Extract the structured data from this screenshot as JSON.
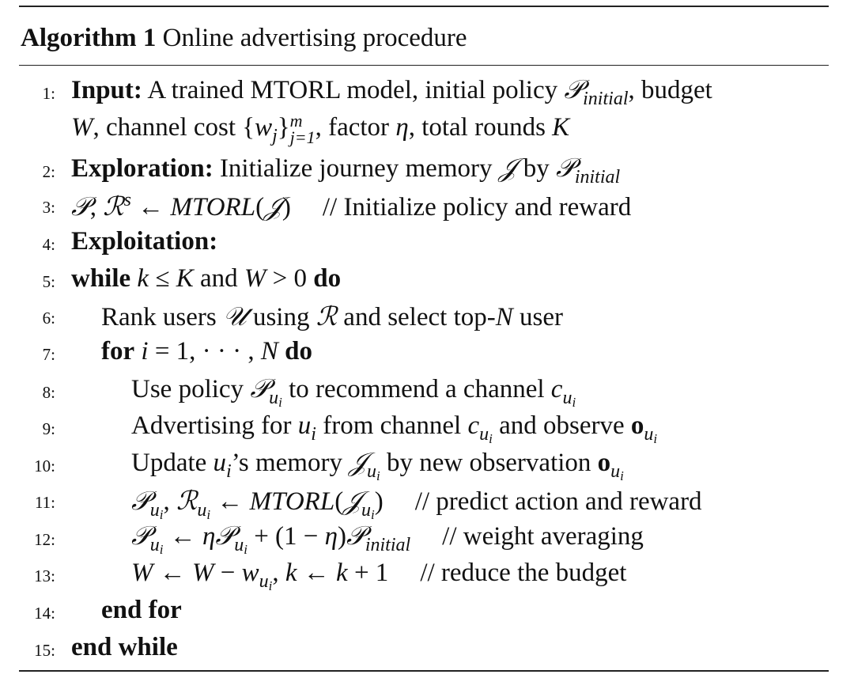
{
  "title": {
    "label": "Algorithm 1",
    "text": " Online advertising procedure"
  },
  "lines": [
    {
      "num": "1:",
      "indent": 0,
      "segs": [
        [
          "b",
          "Input:"
        ],
        [
          "t",
          " A trained MTORL model, initial policy "
        ],
        [
          "i",
          "𝒫"
        ],
        [
          "sub",
          "initial"
        ],
        [
          "t",
          ", budget"
        ]
      ]
    },
    {
      "num": "",
      "indent": 0,
      "segs": [
        [
          "i",
          "W"
        ],
        [
          "t",
          ", channel cost {"
        ],
        [
          "i",
          "w"
        ],
        [
          "sub",
          "j"
        ],
        [
          "t",
          "}"
        ],
        [
          "stack",
          "m|j=1"
        ],
        [
          "t",
          ", factor "
        ],
        [
          "i",
          "η"
        ],
        [
          "t",
          ", total rounds "
        ],
        [
          "i",
          "K"
        ]
      ]
    },
    {
      "num": "2:",
      "indent": 0,
      "segs": [
        [
          "b",
          "Exploration:"
        ],
        [
          "t",
          " Initialize journey memory "
        ],
        [
          "i",
          "𝒥"
        ],
        [
          "t",
          " by "
        ],
        [
          "i",
          "𝒫"
        ],
        [
          "sub",
          "initial"
        ]
      ]
    },
    {
      "num": "3:",
      "indent": 0,
      "segs": [
        [
          "i",
          "𝒫"
        ],
        [
          "t",
          ", "
        ],
        [
          "i",
          "ℛ"
        ],
        [
          "sup",
          "s"
        ],
        [
          "t",
          " ← "
        ],
        [
          "i",
          "MTORL"
        ],
        [
          "t",
          "("
        ],
        [
          "i",
          "𝒥"
        ],
        [
          "t",
          ")"
        ],
        [
          "c",
          "// Initialize policy and reward"
        ]
      ]
    },
    {
      "num": "4:",
      "indent": 0,
      "segs": [
        [
          "b",
          "Exploitation:"
        ]
      ]
    },
    {
      "num": "5:",
      "indent": 0,
      "segs": [
        [
          "b",
          "while"
        ],
        [
          "t",
          " "
        ],
        [
          "i",
          "k"
        ],
        [
          "t",
          " ≤ "
        ],
        [
          "i",
          "K"
        ],
        [
          "t",
          " and "
        ],
        [
          "i",
          "W"
        ],
        [
          "t",
          " > 0 "
        ],
        [
          "b",
          "do"
        ]
      ]
    },
    {
      "num": "6:",
      "indent": 1,
      "segs": [
        [
          "t",
          "Rank users "
        ],
        [
          "i",
          "𝒰"
        ],
        [
          "t",
          " using "
        ],
        [
          "i",
          "ℛ"
        ],
        [
          "t",
          " and select top-"
        ],
        [
          "i",
          "N"
        ],
        [
          "t",
          " user"
        ]
      ]
    },
    {
      "num": "7:",
      "indent": 1,
      "segs": [
        [
          "b",
          "for"
        ],
        [
          "t",
          " "
        ],
        [
          "i",
          "i"
        ],
        [
          "t",
          " = 1, · · · , "
        ],
        [
          "i",
          "N"
        ],
        [
          "t",
          " "
        ],
        [
          "b",
          "do"
        ]
      ]
    },
    {
      "num": "8:",
      "indent": 2,
      "segs": [
        [
          "t",
          "Use policy "
        ],
        [
          "i",
          "𝒫"
        ],
        [
          "sub",
          "u"
        ],
        [
          "ss",
          "i"
        ],
        [
          "t",
          " to recommend a channel "
        ],
        [
          "i",
          "c"
        ],
        [
          "sub",
          "u"
        ],
        [
          "ss",
          "i"
        ]
      ]
    },
    {
      "num": "9:",
      "indent": 2,
      "segs": [
        [
          "t",
          "Advertising for "
        ],
        [
          "i",
          "u"
        ],
        [
          "sub",
          "i"
        ],
        [
          "t",
          " from channel "
        ],
        [
          "i",
          "c"
        ],
        [
          "sub",
          "u"
        ],
        [
          "ss",
          "i"
        ],
        [
          "t",
          " and observe "
        ],
        [
          "b",
          "o"
        ],
        [
          "sub",
          "u"
        ],
        [
          "ss",
          "i"
        ]
      ]
    },
    {
      "num": "10:",
      "indent": 2,
      "segs": [
        [
          "t",
          "Update "
        ],
        [
          "i",
          "u"
        ],
        [
          "sub",
          "i"
        ],
        [
          "t",
          "’s memory "
        ],
        [
          "i",
          "𝒥"
        ],
        [
          "sub",
          "u"
        ],
        [
          "ss",
          "i"
        ],
        [
          "t",
          " by new observation "
        ],
        [
          "b",
          "o"
        ],
        [
          "sub",
          "u"
        ],
        [
          "ss",
          "i"
        ]
      ]
    },
    {
      "num": "11:",
      "indent": 2,
      "segs": [
        [
          "i",
          "𝒫"
        ],
        [
          "sub",
          "u"
        ],
        [
          "ss",
          "i"
        ],
        [
          "t",
          ", "
        ],
        [
          "i",
          "ℛ"
        ],
        [
          "sub",
          "u"
        ],
        [
          "ss",
          "i"
        ],
        [
          "t",
          " ← "
        ],
        [
          "i",
          "MTORL"
        ],
        [
          "t",
          "("
        ],
        [
          "i",
          "𝒥"
        ],
        [
          "sub",
          "u"
        ],
        [
          "ss",
          "i"
        ],
        [
          "t",
          ")"
        ],
        [
          "c",
          "// predict action and reward"
        ]
      ]
    },
    {
      "num": "12:",
      "indent": 2,
      "segs": [
        [
          "i",
          "𝒫"
        ],
        [
          "sub",
          "u"
        ],
        [
          "ss",
          "i"
        ],
        [
          "t",
          " ← "
        ],
        [
          "i",
          "η𝒫"
        ],
        [
          "sub",
          "u"
        ],
        [
          "ss",
          "i"
        ],
        [
          "t",
          " + (1 − "
        ],
        [
          "i",
          "η"
        ],
        [
          "t",
          ")"
        ],
        [
          "i",
          "𝒫"
        ],
        [
          "sub",
          "initial"
        ],
        [
          "c",
          "// weight averaging"
        ]
      ]
    },
    {
      "num": "13:",
      "indent": 2,
      "segs": [
        [
          "i",
          "W"
        ],
        [
          "t",
          " ← "
        ],
        [
          "i",
          "W"
        ],
        [
          "t",
          " − "
        ],
        [
          "i",
          "w"
        ],
        [
          "sub",
          "u"
        ],
        [
          "ss",
          "i"
        ],
        [
          "t",
          ", "
        ],
        [
          "i",
          "k"
        ],
        [
          "t",
          " ← "
        ],
        [
          "i",
          "k"
        ],
        [
          "t",
          " + 1"
        ],
        [
          "c",
          "// reduce the budget"
        ]
      ]
    },
    {
      "num": "14:",
      "indent": 1,
      "segs": [
        [
          "b",
          "end for"
        ]
      ]
    },
    {
      "num": "15:",
      "indent": 0,
      "segs": [
        [
          "b",
          "end while"
        ]
      ]
    }
  ]
}
